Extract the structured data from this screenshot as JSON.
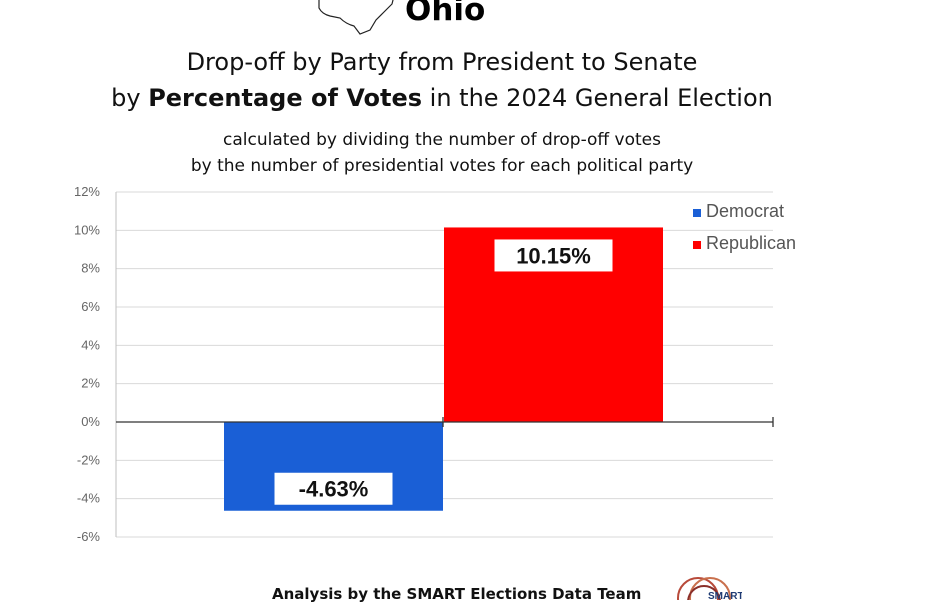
{
  "header": {
    "state_name": "Ohio",
    "title_line1": "Drop-off by Party from President to Senate",
    "title_line2_prefix": "by ",
    "title_line2_bold": "Percentage of Votes",
    "title_line2_suffix": " in the 2024 General Election",
    "subtitle_line1": "calculated by dividing the number of drop-off votes",
    "subtitle_line2": "by the number of presidential votes for each political party"
  },
  "chart_data": {
    "type": "bar",
    "categories": [
      "Democrat",
      "Republican"
    ],
    "values": [
      -4.63,
      10.15
    ],
    "data_labels": [
      "-4.63%",
      "10.15%"
    ],
    "colors": [
      "#1a5fd6",
      "#ff0000"
    ],
    "ylim": [
      -6,
      12
    ],
    "yticks": [
      12,
      10,
      8,
      6,
      4,
      2,
      0,
      -2,
      -4,
      -6
    ],
    "ytick_labels": [
      "12%",
      "10%",
      "8%",
      "6%",
      "4%",
      "2%",
      "0%",
      "-2%",
      "-4%",
      "-6%"
    ],
    "legend": {
      "placement": "top-right",
      "entries": [
        {
          "label": "Democrat",
          "color": "#1a5fd6"
        },
        {
          "label": "Republican",
          "color": "#ff0000"
        }
      ]
    },
    "grid": true
  },
  "footer": {
    "credit": "Analysis by the SMART Elections Data Team",
    "logo_text": "SMART"
  }
}
